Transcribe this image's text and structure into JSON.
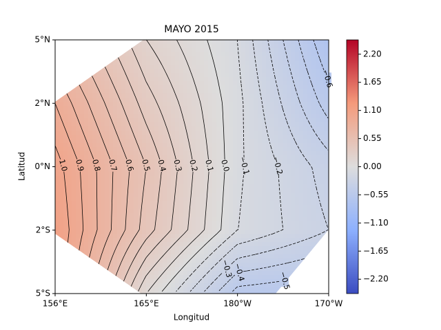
{
  "chart_data": {
    "type": "contour",
    "title": "MAYO 2015",
    "x_label": "Longitud",
    "y_label": "Latitud",
    "x_tick_labels": [
      "156°E",
      "165°E",
      "180°W",
      "170°W"
    ],
    "y_tick_labels": [
      "5°N",
      "2°N",
      "0°N",
      "2°S",
      "5°S"
    ],
    "z": [
      [
        0.7,
        0.2,
        -0.1,
        -0.7
      ],
      [
        0.9,
        0.35,
        -0.07,
        -0.55
      ],
      [
        1.05,
        0.5,
        -0.08,
        -0.35
      ],
      [
        1.1,
        0.45,
        -0.1,
        -0.3
      ],
      [
        1.1,
        0.1,
        -0.55,
        -0.6
      ]
    ],
    "levels": [
      {
        "value": 1,
        "label": "1.0"
      },
      0.9,
      0.8,
      0.7,
      0.6,
      0.5,
      0.4,
      0.3,
      0.2,
      0.1,
      {
        "value": 0,
        "label": "0.0"
      },
      {
        "value": -0.1,
        "label": "−0.1"
      },
      {
        "value": -0.2,
        "label": "−0.2"
      },
      {
        "value": -0.3,
        "label": "−0.3"
      },
      {
        "value": -0.4,
        "label": "−0.4"
      },
      {
        "value": -0.5,
        "label": "−0.5"
      },
      {
        "value": -0.6,
        "label": "−0.6"
      }
    ],
    "clim": [
      -2.48,
      2.48
    ],
    "colorbar_ticks": [
      {
        "value": 2.2,
        "label": "2.20"
      },
      {
        "value": 1.65,
        "label": "1.65"
      },
      {
        "value": 1.1,
        "label": "1.10"
      },
      {
        "value": 0.55,
        "label": "0.55"
      },
      {
        "value": 0,
        "label": "0.00"
      },
      {
        "value": -0.55,
        "label": "−0.55"
      },
      {
        "value": -1.1,
        "label": "−1.10"
      },
      {
        "value": -1.65,
        "label": "−1.65"
      },
      {
        "value": -2.2,
        "label": "−2.20"
      }
    ],
    "colormap": "coolwarm"
  }
}
